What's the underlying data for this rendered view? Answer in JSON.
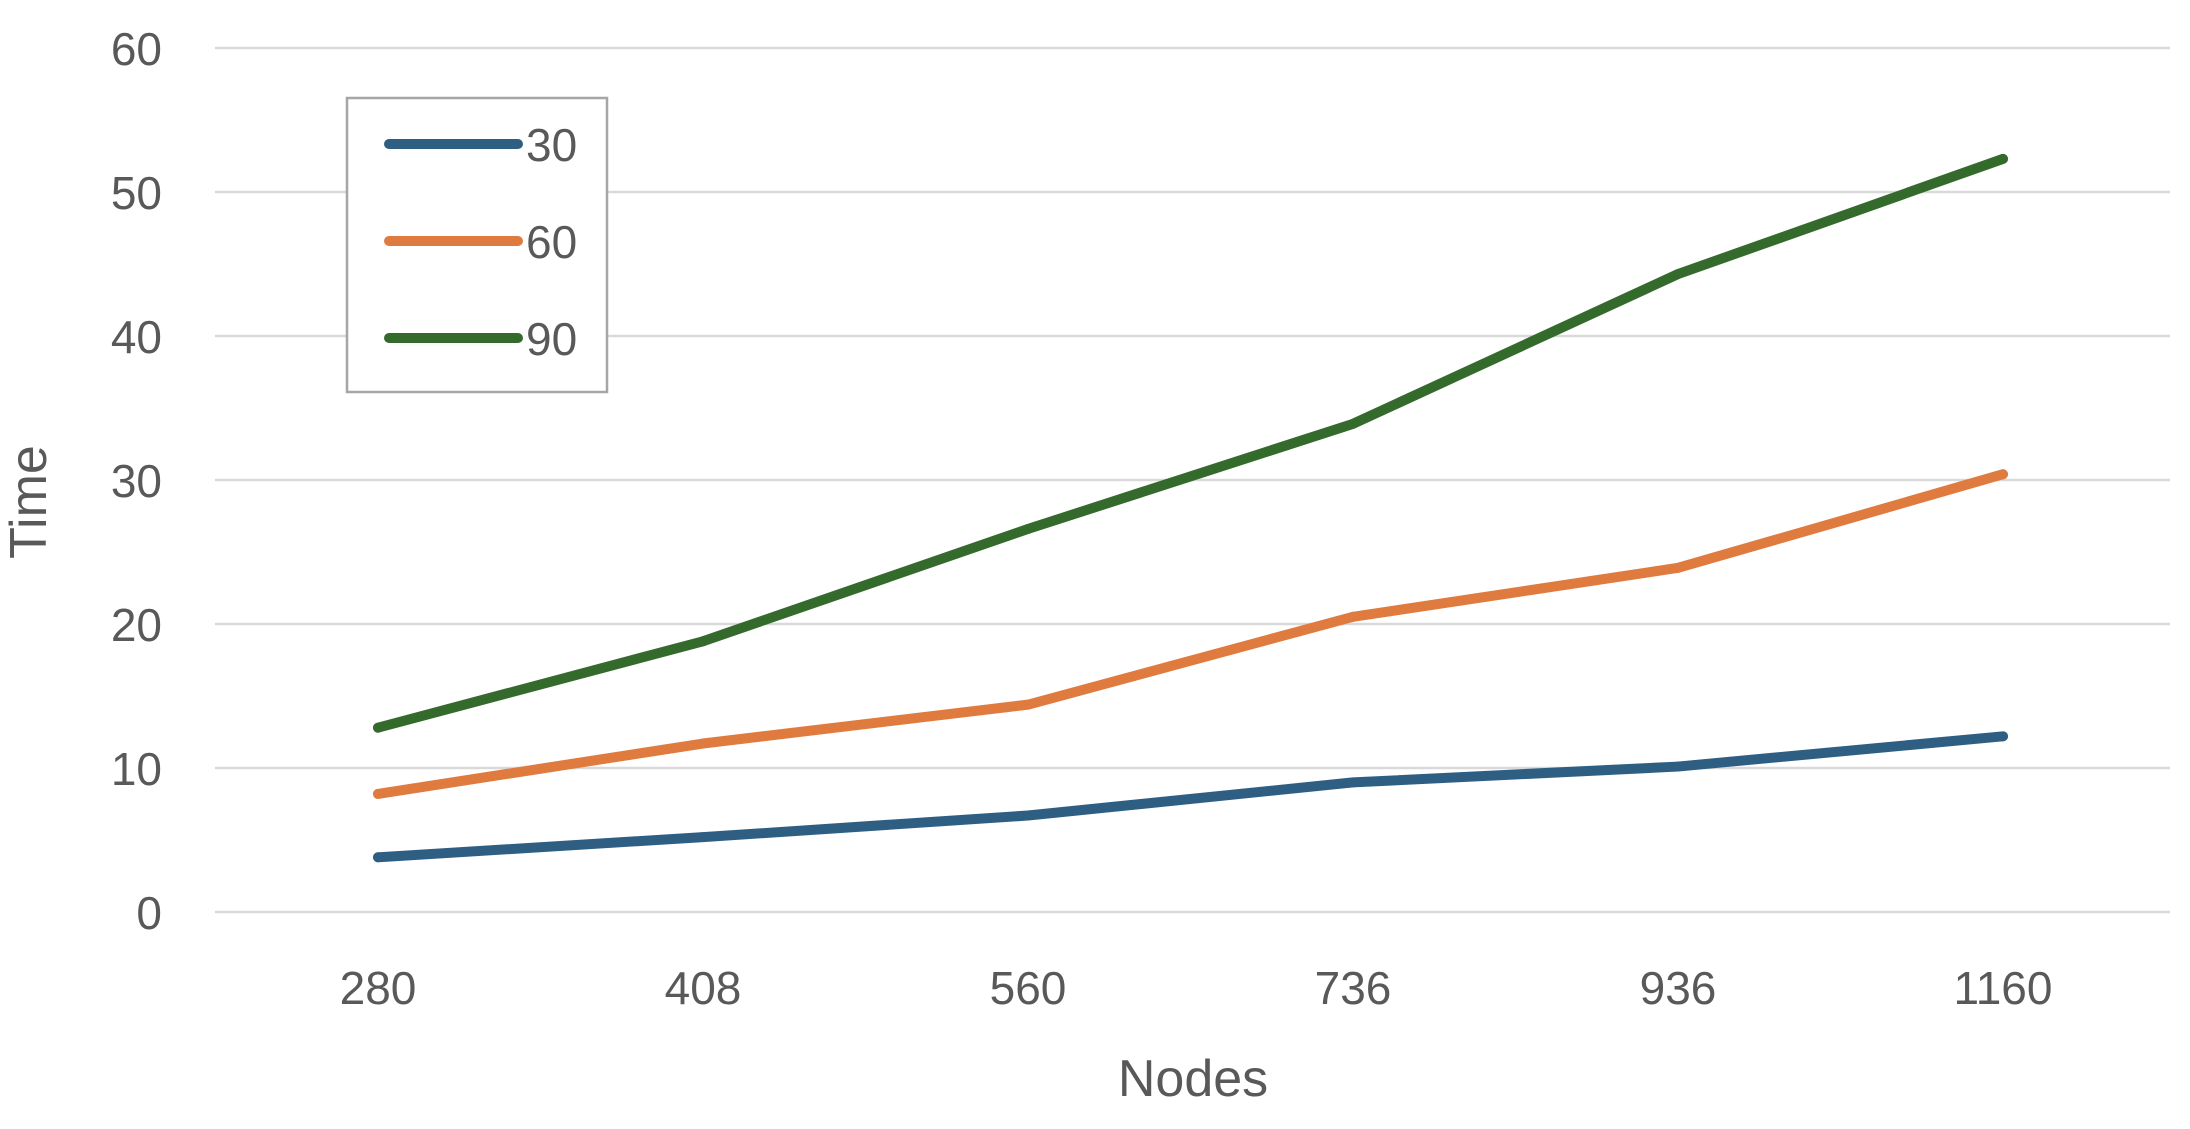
{
  "chart_data": {
    "type": "line",
    "title": "",
    "xlabel": "Nodes",
    "ylabel": "Time",
    "categories": [
      "280",
      "408",
      "560",
      "736",
      "936",
      "1160"
    ],
    "ylim": [
      0,
      60
    ],
    "yticks": [
      0,
      10,
      20,
      30,
      40,
      50,
      60
    ],
    "grid": "horizontal",
    "legend": "top-left",
    "series": [
      {
        "name": "30",
        "color": "#2e5f82",
        "values": [
          3.8,
          5.2,
          6.7,
          9.0,
          10.1,
          12.2
        ]
      },
      {
        "name": "60",
        "color": "#e07b3f",
        "values": [
          8.2,
          11.7,
          14.4,
          20.5,
          23.9,
          30.4
        ]
      },
      {
        "name": "90",
        "color": "#356a2d",
        "values": [
          12.8,
          18.8,
          26.6,
          33.9,
          44.3,
          52.3
        ]
      }
    ]
  }
}
